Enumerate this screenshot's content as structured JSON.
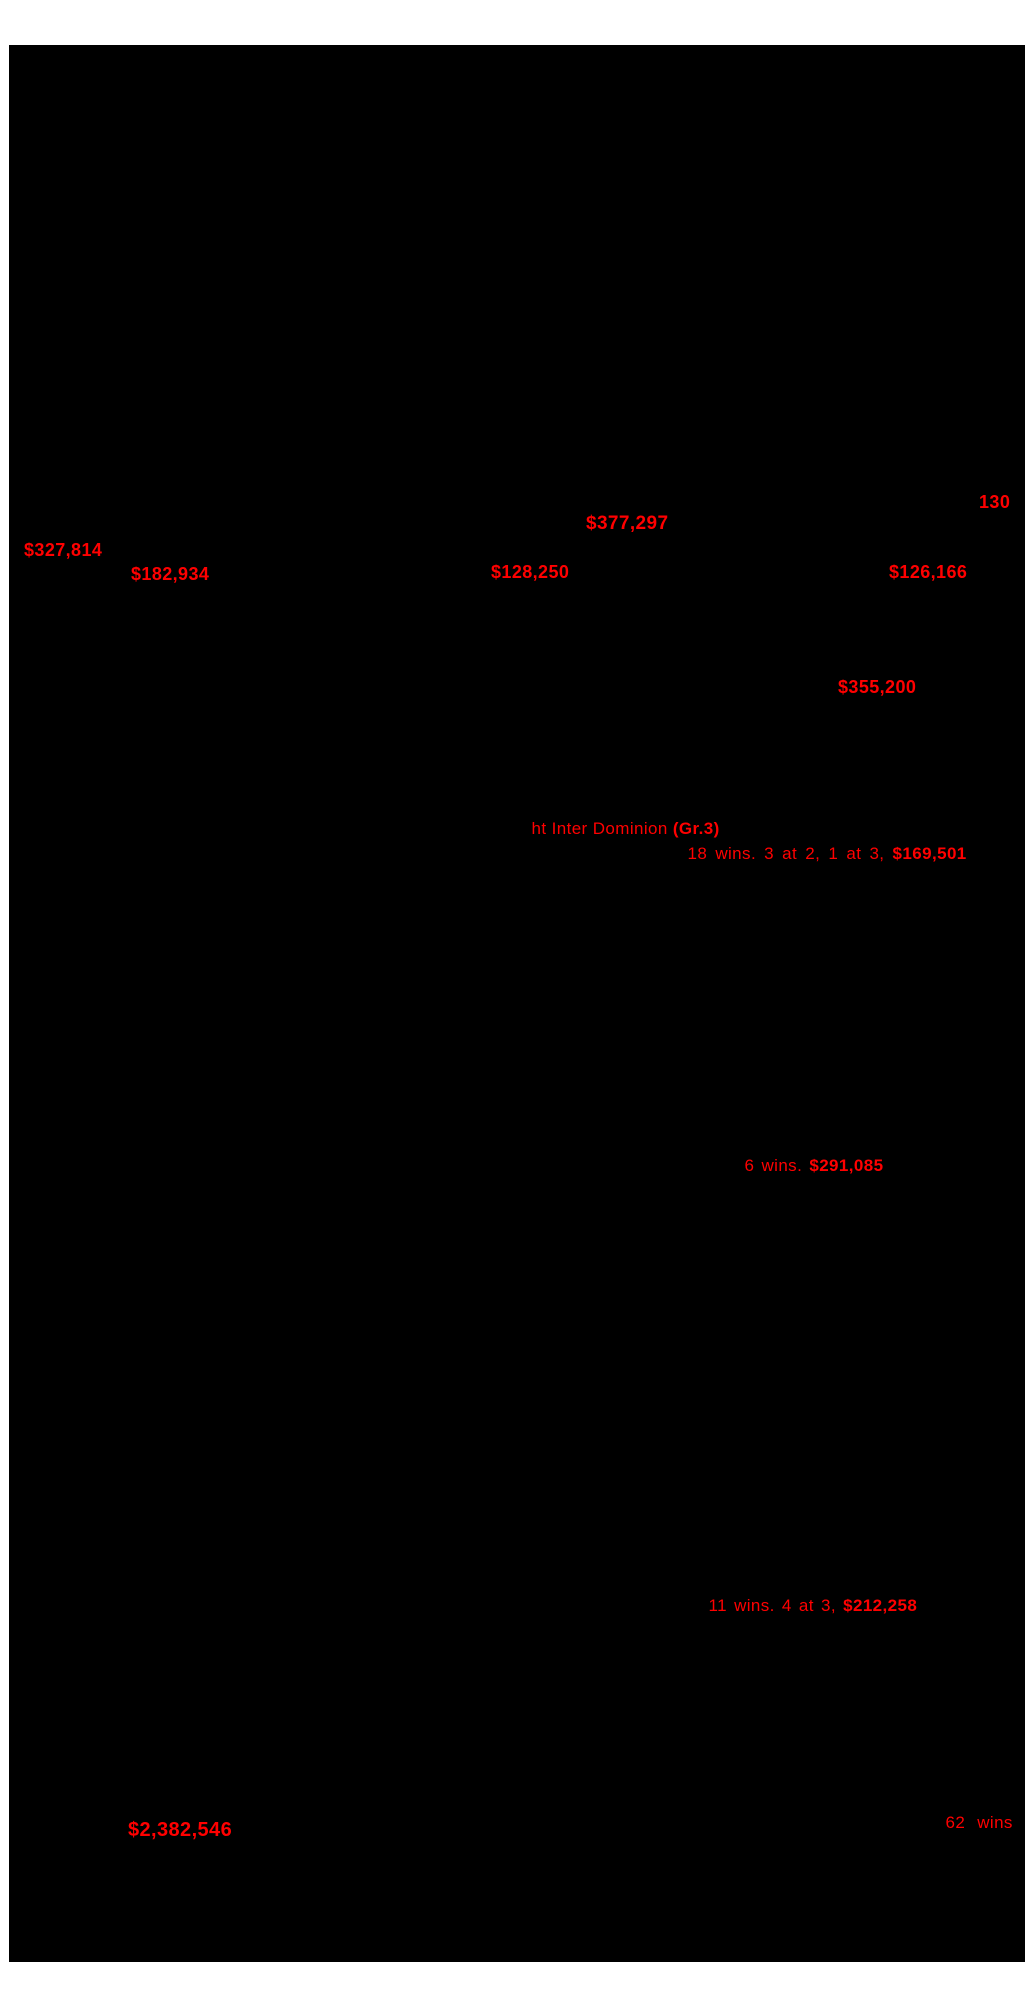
{
  "page": {
    "background_color": "#ffffff",
    "document_color": "#000000",
    "accent_red": "#ff0000"
  },
  "annotations": {
    "count_130": "130",
    "earnings_377297": "$377,297",
    "earnings_327814": "$327,814",
    "earnings_182934": "$182,934",
    "earnings_128250": "$128,250",
    "earnings_126166": "$126,166",
    "earnings_355200": "$355,200",
    "race_line": {
      "prefix": "ht Inter Dominion ",
      "grade": "(Gr.3)"
    },
    "record_18_wins": {
      "prefix": "18 wins. 3 at 2, 1 at 3, ",
      "amount": "$169,501"
    },
    "record_6_wins": {
      "prefix": "6 wins. ",
      "amount": "$291,085"
    },
    "record_11_wins": {
      "prefix": "11 wins. 4 at 3, ",
      "amount": "$212,258"
    },
    "record_62_wins": {
      "count": "62",
      "label": "wins"
    },
    "earnings_2382546": "$2,382,546"
  }
}
